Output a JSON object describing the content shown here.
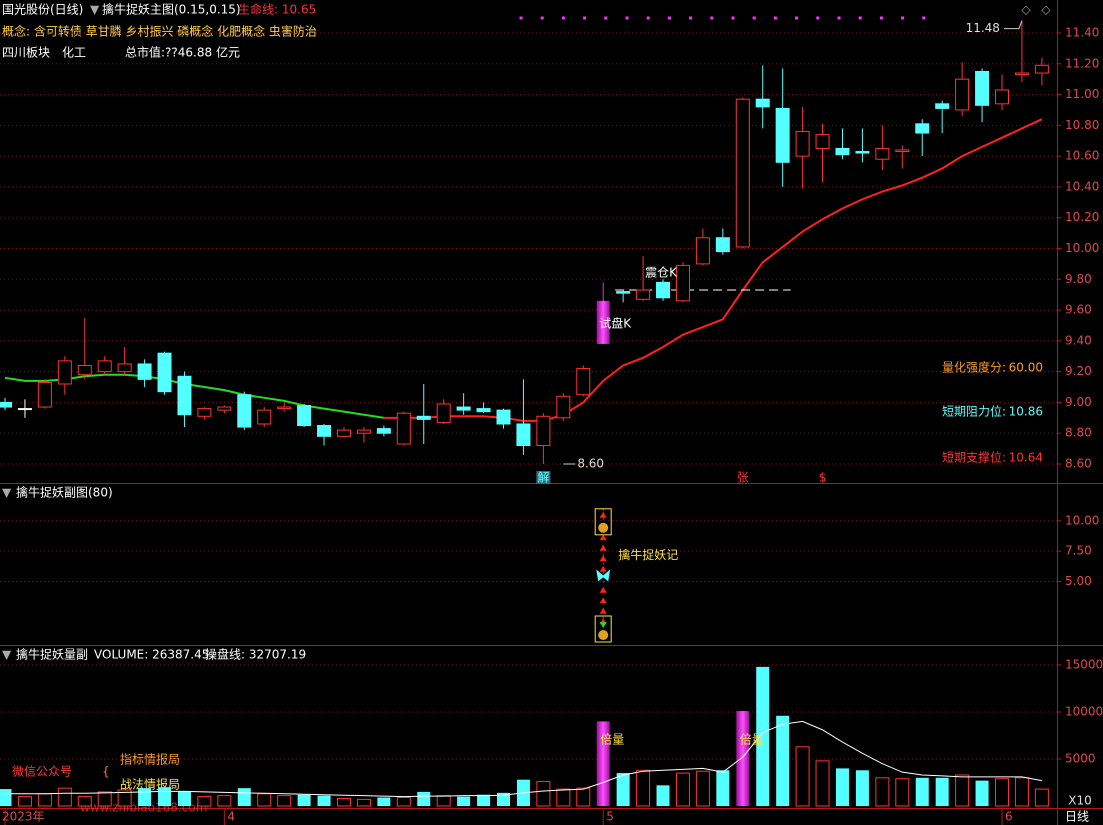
{
  "header": {
    "stock": "国光股份(日线)",
    "indicator": "擒牛捉妖主图(0.15,0.15)",
    "lifeline": "生命线: 10.65",
    "concepts": "概念: 含可转债 草甘膦 乡村振兴 磷概念 化肥概念 虫害防治",
    "sector": "四川板块",
    "industry": "化工",
    "market_cap": "总市值:??46.88 亿元"
  },
  "info": [
    {
      "label": "量化强度分:",
      "value": "60.00",
      "color": "#ff9a2a"
    },
    {
      "label": "短期阻力位:",
      "value": "10.86",
      "color": "#54ffff"
    },
    {
      "label": "短期支撑位:",
      "value": "10.64",
      "color": "#ff3232"
    }
  ],
  "watermark": {
    "left": "微信公众号",
    "brace": "{",
    "line1": "指标情报局",
    "line2": "战法情报局",
    "url": "www.zhibiao168.com"
  },
  "xlabels": [
    {
      "at": 0,
      "label": "2023年"
    },
    {
      "at": 11,
      "label": "4"
    },
    {
      "at": 30,
      "label": "5"
    },
    {
      "at": 50,
      "label": "6"
    }
  ],
  "period": "日线",
  "chart_data": [
    {
      "type": "candlestick",
      "grid": true,
      "up_color": "#ff3232",
      "down_color": "#54ffff",
      "highlight": [
        30
      ],
      "highlight_color": "#e030e0",
      "ylim": [
        8.5,
        11.5
      ],
      "yticks": [
        {
          "value": 8.6,
          "label": "8.60"
        },
        {
          "value": 8.8,
          "label": "8.80"
        },
        {
          "value": 9.0,
          "label": "9.00"
        },
        {
          "value": 9.2,
          "label": "9.20"
        },
        {
          "value": 9.4,
          "label": "9.40"
        },
        {
          "value": 9.6,
          "label": "9.60"
        },
        {
          "value": 9.8,
          "label": "9.80"
        },
        {
          "value": 10.0,
          "label": "10.00"
        },
        {
          "value": 10.2,
          "label": "10.20"
        },
        {
          "value": 10.4,
          "label": "10.40"
        },
        {
          "value": 10.6,
          "label": "10.60"
        },
        {
          "value": 10.8,
          "label": "10.80"
        },
        {
          "value": 11.0,
          "label": "11.00"
        },
        {
          "value": 11.2,
          "label": "11.20"
        },
        {
          "value": 11.4,
          "label": "11.40"
        }
      ],
      "open": [
        9.0,
        8.96,
        8.97,
        9.12,
        9.18,
        9.2,
        9.2,
        9.25,
        9.32,
        9.17,
        8.91,
        8.95,
        9.05,
        8.86,
        8.96,
        8.98,
        8.85,
        8.78,
        8.8,
        8.83,
        8.73,
        8.91,
        8.87,
        8.97,
        8.96,
        8.95,
        8.86,
        8.72,
        8.9,
        9.05,
        9.38,
        9.72,
        9.67,
        9.78,
        9.66,
        9.9,
        10.07,
        10.01,
        10.97,
        10.91,
        10.6,
        10.65,
        10.65,
        10.63,
        10.58,
        10.63,
        10.81,
        10.94,
        10.9,
        11.15,
        10.94,
        11.13,
        11.14
      ],
      "high": [
        9.03,
        9.02,
        9.15,
        9.3,
        9.55,
        9.3,
        9.36,
        9.28,
        9.33,
        9.2,
        8.97,
        8.98,
        9.07,
        8.97,
        9.0,
        8.99,
        8.86,
        8.84,
        8.84,
        8.85,
        8.94,
        9.12,
        9.02,
        9.06,
        9.0,
        8.96,
        9.15,
        8.93,
        9.06,
        9.24,
        9.78,
        9.73,
        9.95,
        9.8,
        9.91,
        10.13,
        10.13,
        10.98,
        11.19,
        11.17,
        10.92,
        10.81,
        10.78,
        10.78,
        10.8,
        10.67,
        10.84,
        10.96,
        11.21,
        11.17,
        11.13,
        11.48,
        11.24
      ],
      "low": [
        8.95,
        8.9,
        8.96,
        9.05,
        9.15,
        9.18,
        9.18,
        9.1,
        9.05,
        8.84,
        8.89,
        8.93,
        8.82,
        8.84,
        8.94,
        8.84,
        8.72,
        8.77,
        8.74,
        8.78,
        8.72,
        8.73,
        8.86,
        8.92,
        8.93,
        8.83,
        8.66,
        8.6,
        8.88,
        9.04,
        9.38,
        9.65,
        9.66,
        9.66,
        9.65,
        9.89,
        9.96,
        10.0,
        10.78,
        10.4,
        10.39,
        10.43,
        10.58,
        10.56,
        10.51,
        10.52,
        10.6,
        10.75,
        10.86,
        10.82,
        10.9,
        11.08,
        11.06
      ],
      "close": [
        8.97,
        8.96,
        9.13,
        9.27,
        9.24,
        9.27,
        9.25,
        9.15,
        9.07,
        8.92,
        8.96,
        8.97,
        8.84,
        8.95,
        8.97,
        8.85,
        8.78,
        8.82,
        8.82,
        8.8,
        8.93,
        8.89,
        8.99,
        8.95,
        8.94,
        8.86,
        8.72,
        8.91,
        9.04,
        9.22,
        9.66,
        9.71,
        9.73,
        9.68,
        9.89,
        10.07,
        9.98,
        10.97,
        10.92,
        10.56,
        10.76,
        10.74,
        10.61,
        10.62,
        10.65,
        10.64,
        10.75,
        10.91,
        11.1,
        10.93,
        11.03,
        11.14,
        11.19
      ],
      "lines": [
        {
          "color": "#22dd22",
          "values": [
            9.16,
            9.14,
            9.14,
            9.15,
            9.17,
            9.18,
            9.18,
            9.17,
            9.15,
            9.12,
            9.1,
            9.08,
            9.05,
            9.03,
            9.01,
            8.98,
            8.96,
            8.94,
            8.92,
            8.9,
            null,
            null,
            null,
            null,
            null,
            null,
            null,
            null,
            null,
            null,
            null,
            null,
            null,
            null,
            null,
            null,
            null,
            null,
            null,
            null,
            null,
            null,
            null,
            null,
            null,
            null,
            null,
            null,
            null,
            null,
            null,
            null,
            null
          ]
        },
        {
          "color": "#ff2020",
          "values": [
            null,
            null,
            null,
            null,
            null,
            null,
            null,
            null,
            null,
            null,
            null,
            null,
            null,
            null,
            null,
            null,
            null,
            null,
            null,
            8.9,
            8.9,
            8.9,
            8.91,
            8.91,
            8.91,
            8.9,
            8.88,
            8.88,
            8.92,
            9.0,
            9.14,
            9.24,
            9.29,
            9.36,
            9.44,
            9.49,
            9.54,
            9.73,
            9.91,
            10.01,
            10.11,
            10.19,
            10.26,
            10.32,
            10.37,
            10.41,
            10.46,
            10.52,
            10.6,
            10.66,
            10.72,
            10.78,
            10.84
          ]
        }
      ],
      "price_labels": [
        {
          "value": 11.48,
          "label": "11.48",
          "at": 51
        },
        {
          "value": 8.6,
          "label": "8.60",
          "at": 28
        }
      ],
      "annotations": [
        {
          "text": "试盘K",
          "at": 30,
          "value": 9.51
        },
        {
          "text": "震仓K",
          "at": 32,
          "value": 9.84
        },
        {
          "text": "解",
          "at": 27
        },
        {
          "text": "张",
          "at": 37
        },
        {
          "text": "$",
          "at": 41
        }
      ],
      "level": {
        "value": 9.73,
        "from": 31,
        "to": 39
      }
    },
    {
      "type": "signal",
      "title": "擒牛捉妖副图(80)",
      "grid": true,
      "color": "#ff2020",
      "ylim": [
        0,
        12.8
      ],
      "yticks": [
        {
          "value": 5,
          "label": "5.00"
        },
        {
          "value": 7.5,
          "label": "7.50"
        },
        {
          "value": 10,
          "label": "10.00"
        }
      ],
      "x": [
        30
      ],
      "values": [
        11
      ],
      "label": "擒牛捉妖记"
    },
    {
      "type": "bar",
      "title": "擒牛捉妖量副",
      "readouts": [
        "VOLUME: 26387.45",
        "操盘线: 32707.19"
      ],
      "grid": true,
      "highlight": [
        30,
        37
      ],
      "unit": "X10",
      "ylim": [
        0,
        16000
      ],
      "yticks": [
        5000,
        10000,
        15000
      ],
      "values": [
        1800,
        1000,
        1300,
        1900,
        1000,
        1500,
        1700,
        1900,
        2000,
        1600,
        1000,
        1100,
        1900,
        1300,
        1100,
        1200,
        1100,
        800,
        700,
        900,
        900,
        1500,
        1100,
        1000,
        1200,
        1400,
        2800,
        2600,
        1800,
        1900,
        9000,
        3500,
        3800,
        2200,
        3500,
        3700,
        3800,
        10100,
        14800,
        9600,
        6300,
        4800,
        4000,
        3800,
        3000,
        2900,
        3000,
        3000,
        3300,
        2700,
        2900,
        3000,
        1800
      ],
      "line": {
        "color": "#ffffff",
        "values": [
          1300,
          1300,
          1300,
          1350,
          1350,
          1400,
          1450,
          1500,
          1550,
          1550,
          1500,
          1450,
          1400,
          1350,
          1300,
          1250,
          1200,
          1150,
          1100,
          1050,
          1000,
          1050,
          1050,
          1100,
          1100,
          1150,
          1400,
          1600,
          1700,
          1800,
          2500,
          3300,
          3700,
          3800,
          3900,
          4000,
          3600,
          5200,
          7800,
          8700,
          9000,
          8100,
          6800,
          5600,
          4500,
          3600,
          3300,
          3200,
          3100,
          3100,
          3100,
          3100,
          2700
        ]
      },
      "annotations": [
        {
          "text": "倍量",
          "at": 30
        },
        {
          "text": "倍量",
          "at": 37
        }
      ]
    }
  ]
}
